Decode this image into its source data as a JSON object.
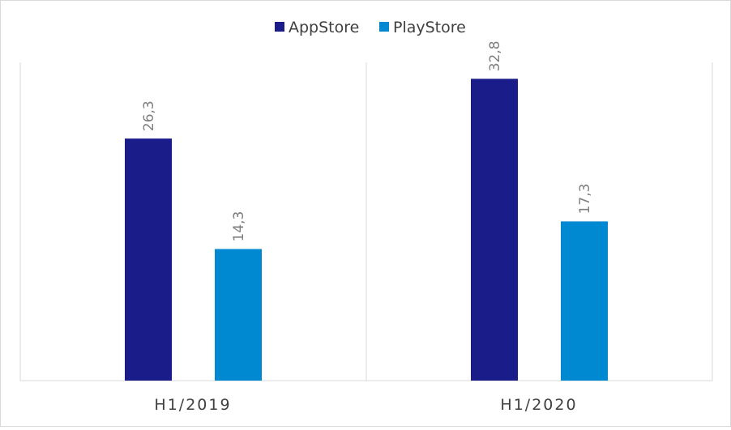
{
  "chart_data": {
    "type": "bar",
    "title": "",
    "xlabel": "",
    "ylabel": "",
    "categories": [
      "H1/2019",
      "H1/2020"
    ],
    "series": [
      {
        "name": "AppStore",
        "values": [
          26.3,
          32.8
        ],
        "labels": [
          "26,3",
          "32,8"
        ],
        "color": "#1a1c8a"
      },
      {
        "name": "PlayStore",
        "values": [
          14.3,
          17.3
        ],
        "labels": [
          "14,3",
          "17,3"
        ],
        "color": "#0088d1"
      }
    ],
    "ylim": [
      0,
      33
    ],
    "grid": false,
    "legend": "top-center"
  }
}
